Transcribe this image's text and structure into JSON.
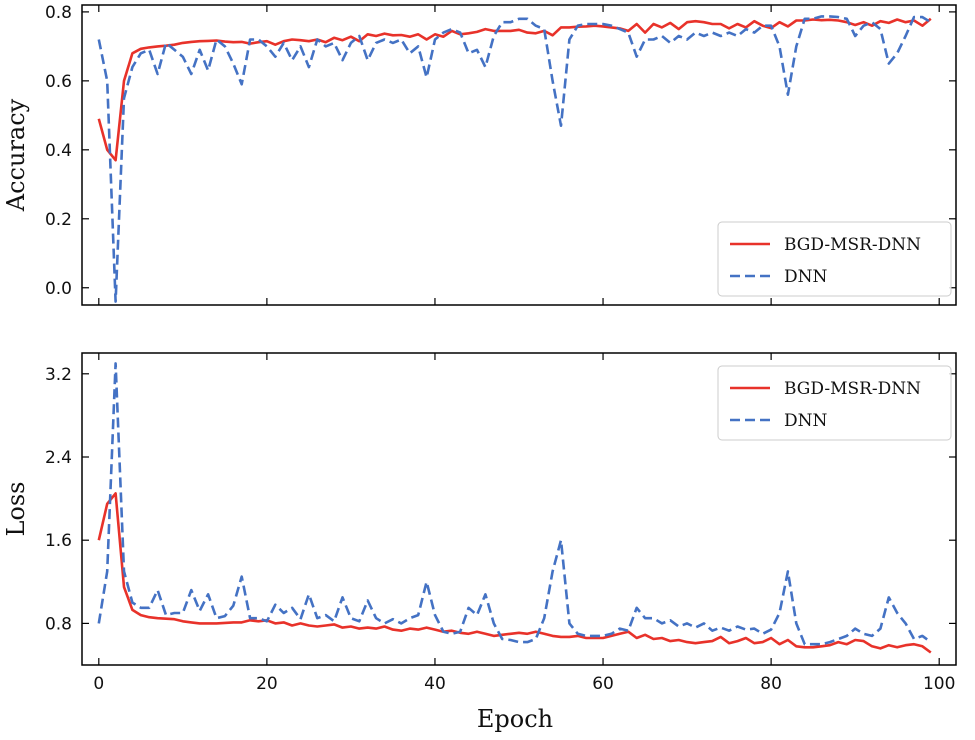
{
  "chart_data": [
    {
      "type": "line",
      "ylabel": "Accuracy",
      "xlabel": "",
      "xlim": [
        -2,
        102
      ],
      "ylim": [
        -0.05,
        0.82
      ],
      "xticks": [
        0,
        20,
        40,
        60,
        80,
        100
      ],
      "xtick_labels": [
        "",
        "",
        "",
        "",
        "",
        ""
      ],
      "yticks": [
        0.0,
        0.2,
        0.4,
        0.6,
        0.8
      ],
      "ytick_labels": [
        "0.0",
        "0.2",
        "0.4",
        "0.6",
        "0.8"
      ],
      "legend_position": "lower-right",
      "series": [
        {
          "name": "BGD-MSR-DNN",
          "color": "#e8322a",
          "style": "solid",
          "x": [
            0,
            1,
            2,
            3,
            4,
            5,
            6,
            7,
            8,
            9,
            10,
            11,
            12,
            13,
            14,
            15,
            16,
            17,
            18,
            19,
            20,
            21,
            22,
            23,
            24,
            25,
            26,
            27,
            28,
            29,
            30,
            31,
            32,
            33,
            34,
            35,
            36,
            37,
            38,
            39,
            40,
            41,
            42,
            43,
            44,
            45,
            46,
            47,
            48,
            49,
            50,
            51,
            52,
            53,
            54,
            55,
            56,
            57,
            58,
            59,
            60,
            61,
            62,
            63,
            64,
            65,
            66,
            67,
            68,
            69,
            70,
            71,
            72,
            73,
            74,
            75,
            76,
            77,
            78,
            79,
            80,
            81,
            82,
            83,
            84,
            85,
            86,
            87,
            88,
            89,
            90,
            91,
            92,
            93,
            94,
            95,
            96,
            97,
            98,
            99
          ],
          "values": [
            0.49,
            0.4,
            0.37,
            0.6,
            0.68,
            0.693,
            0.697,
            0.7,
            0.702,
            0.705,
            0.71,
            0.713,
            0.715,
            0.716,
            0.717,
            0.714,
            0.712,
            0.713,
            0.708,
            0.712,
            0.715,
            0.705,
            0.715,
            0.72,
            0.718,
            0.715,
            0.72,
            0.712,
            0.725,
            0.718,
            0.728,
            0.715,
            0.735,
            0.73,
            0.737,
            0.732,
            0.733,
            0.728,
            0.735,
            0.72,
            0.735,
            0.728,
            0.745,
            0.735,
            0.738,
            0.742,
            0.75,
            0.745,
            0.745,
            0.745,
            0.748,
            0.74,
            0.738,
            0.745,
            0.732,
            0.755,
            0.755,
            0.757,
            0.758,
            0.76,
            0.758,
            0.755,
            0.752,
            0.745,
            0.765,
            0.74,
            0.765,
            0.755,
            0.768,
            0.75,
            0.77,
            0.773,
            0.77,
            0.765,
            0.765,
            0.752,
            0.765,
            0.755,
            0.773,
            0.76,
            0.753,
            0.77,
            0.758,
            0.775,
            0.775,
            0.778,
            0.776,
            0.777,
            0.775,
            0.77,
            0.762,
            0.77,
            0.76,
            0.773,
            0.768,
            0.778,
            0.77,
            0.775,
            0.76,
            0.78
          ]
        },
        {
          "name": "DNN",
          "color": "#4472c4",
          "style": "dashed",
          "x": [
            0,
            1,
            2,
            3,
            4,
            5,
            6,
            7,
            8,
            9,
            10,
            11,
            12,
            13,
            14,
            15,
            16,
            17,
            18,
            19,
            20,
            21,
            22,
            23,
            24,
            25,
            26,
            27,
            28,
            29,
            30,
            31,
            32,
            33,
            34,
            35,
            36,
            37,
            38,
            39,
            40,
            41,
            42,
            43,
            44,
            45,
            46,
            47,
            48,
            49,
            50,
            51,
            52,
            53,
            54,
            55,
            56,
            57,
            58,
            59,
            60,
            61,
            62,
            63,
            64,
            65,
            66,
            67,
            68,
            69,
            70,
            71,
            72,
            73,
            74,
            75,
            76,
            77,
            78,
            79,
            80,
            81,
            82,
            83,
            84,
            85,
            86,
            87,
            88,
            89,
            90,
            91,
            92,
            93,
            94,
            95,
            96,
            97,
            98,
            99
          ],
          "values": [
            0.72,
            0.6,
            -0.04,
            0.55,
            0.64,
            0.68,
            0.69,
            0.62,
            0.71,
            0.69,
            0.67,
            0.62,
            0.69,
            0.63,
            0.72,
            0.7,
            0.65,
            0.59,
            0.72,
            0.72,
            0.7,
            0.67,
            0.71,
            0.66,
            0.7,
            0.64,
            0.72,
            0.7,
            0.71,
            0.66,
            0.71,
            0.73,
            0.66,
            0.71,
            0.72,
            0.71,
            0.72,
            0.68,
            0.7,
            0.61,
            0.72,
            0.74,
            0.75,
            0.74,
            0.68,
            0.69,
            0.64,
            0.73,
            0.77,
            0.77,
            0.78,
            0.78,
            0.76,
            0.75,
            0.6,
            0.47,
            0.72,
            0.76,
            0.765,
            0.765,
            0.765,
            0.76,
            0.75,
            0.74,
            0.67,
            0.72,
            0.72,
            0.73,
            0.71,
            0.73,
            0.72,
            0.74,
            0.73,
            0.74,
            0.73,
            0.74,
            0.73,
            0.75,
            0.74,
            0.76,
            0.76,
            0.7,
            0.56,
            0.7,
            0.78,
            0.78,
            0.787,
            0.787,
            0.785,
            0.78,
            0.73,
            0.76,
            0.77,
            0.75,
            0.65,
            0.68,
            0.73,
            0.785,
            0.785,
            0.77
          ]
        }
      ]
    },
    {
      "type": "line",
      "ylabel": "Loss",
      "xlabel": "Epoch",
      "xlim": [
        -2,
        102
      ],
      "ylim": [
        0.4,
        3.4
      ],
      "xticks": [
        0,
        20,
        40,
        60,
        80,
        100
      ],
      "xtick_labels": [
        "0",
        "20",
        "40",
        "60",
        "80",
        "100"
      ],
      "yticks": [
        0.8,
        1.6,
        2.4,
        3.2
      ],
      "ytick_labels": [
        "0.8",
        "1.6",
        "2.4",
        "3.2"
      ],
      "legend_position": "top-right",
      "series": [
        {
          "name": "BGD-MSR-DNN",
          "color": "#e8322a",
          "style": "solid",
          "x": [
            0,
            1,
            2,
            3,
            4,
            5,
            6,
            7,
            8,
            9,
            10,
            11,
            12,
            13,
            14,
            15,
            16,
            17,
            18,
            19,
            20,
            21,
            22,
            23,
            24,
            25,
            26,
            27,
            28,
            29,
            30,
            31,
            32,
            33,
            34,
            35,
            36,
            37,
            38,
            39,
            40,
            41,
            42,
            43,
            44,
            45,
            46,
            47,
            48,
            49,
            50,
            51,
            52,
            53,
            54,
            55,
            56,
            57,
            58,
            59,
            60,
            61,
            62,
            63,
            64,
            65,
            66,
            67,
            68,
            69,
            70,
            71,
            72,
            73,
            74,
            75,
            76,
            77,
            78,
            79,
            80,
            81,
            82,
            83,
            84,
            85,
            86,
            87,
            88,
            89,
            90,
            91,
            92,
            93,
            94,
            95,
            96,
            97,
            98,
            99
          ],
          "values": [
            1.6,
            1.95,
            2.05,
            1.15,
            0.93,
            0.88,
            0.86,
            0.85,
            0.845,
            0.84,
            0.82,
            0.81,
            0.8,
            0.8,
            0.8,
            0.805,
            0.81,
            0.81,
            0.83,
            0.82,
            0.83,
            0.8,
            0.81,
            0.78,
            0.8,
            0.78,
            0.77,
            0.78,
            0.79,
            0.76,
            0.77,
            0.75,
            0.76,
            0.75,
            0.77,
            0.74,
            0.73,
            0.75,
            0.74,
            0.76,
            0.74,
            0.72,
            0.73,
            0.71,
            0.7,
            0.72,
            0.7,
            0.68,
            0.69,
            0.7,
            0.71,
            0.7,
            0.72,
            0.7,
            0.68,
            0.67,
            0.67,
            0.68,
            0.66,
            0.66,
            0.66,
            0.68,
            0.7,
            0.72,
            0.66,
            0.69,
            0.65,
            0.66,
            0.63,
            0.64,
            0.62,
            0.61,
            0.62,
            0.63,
            0.67,
            0.61,
            0.63,
            0.66,
            0.61,
            0.62,
            0.66,
            0.6,
            0.64,
            0.58,
            0.57,
            0.57,
            0.58,
            0.59,
            0.62,
            0.6,
            0.64,
            0.63,
            0.58,
            0.56,
            0.59,
            0.57,
            0.59,
            0.6,
            0.58,
            0.52
          ]
        },
        {
          "name": "DNN",
          "color": "#4472c4",
          "style": "dashed",
          "x": [
            0,
            1,
            2,
            3,
            4,
            5,
            6,
            7,
            8,
            9,
            10,
            11,
            12,
            13,
            14,
            15,
            16,
            17,
            18,
            19,
            20,
            21,
            22,
            23,
            24,
            25,
            26,
            27,
            28,
            29,
            30,
            31,
            32,
            33,
            34,
            35,
            36,
            37,
            38,
            39,
            40,
            41,
            42,
            43,
            44,
            45,
            46,
            47,
            48,
            49,
            50,
            51,
            52,
            53,
            54,
            55,
            56,
            57,
            58,
            59,
            60,
            61,
            62,
            63,
            64,
            65,
            66,
            67,
            68,
            69,
            70,
            71,
            72,
            73,
            74,
            75,
            76,
            77,
            78,
            79,
            80,
            81,
            82,
            83,
            84,
            85,
            86,
            87,
            88,
            89,
            90,
            91,
            92,
            93,
            94,
            95,
            96,
            97,
            98,
            99
          ],
          "values": [
            0.8,
            1.3,
            3.3,
            1.3,
            1.0,
            0.95,
            0.95,
            1.12,
            0.88,
            0.9,
            0.9,
            1.12,
            0.92,
            1.08,
            0.85,
            0.87,
            0.97,
            1.25,
            0.85,
            0.85,
            0.82,
            0.98,
            0.9,
            0.95,
            0.84,
            1.08,
            0.85,
            0.88,
            0.82,
            1.05,
            0.85,
            0.82,
            1.02,
            0.85,
            0.8,
            0.84,
            0.8,
            0.85,
            0.88,
            1.2,
            0.88,
            0.72,
            0.7,
            0.72,
            0.95,
            0.88,
            1.08,
            0.8,
            0.65,
            0.64,
            0.62,
            0.62,
            0.65,
            0.85,
            1.3,
            1.6,
            0.8,
            0.7,
            0.68,
            0.68,
            0.68,
            0.7,
            0.75,
            0.73,
            0.95,
            0.85,
            0.85,
            0.8,
            0.83,
            0.77,
            0.8,
            0.76,
            0.8,
            0.73,
            0.76,
            0.73,
            0.77,
            0.74,
            0.75,
            0.7,
            0.74,
            0.9,
            1.3,
            0.8,
            0.6,
            0.6,
            0.6,
            0.62,
            0.65,
            0.68,
            0.75,
            0.7,
            0.68,
            0.75,
            1.05,
            0.9,
            0.8,
            0.65,
            0.68,
            0.62
          ]
        }
      ]
    }
  ]
}
